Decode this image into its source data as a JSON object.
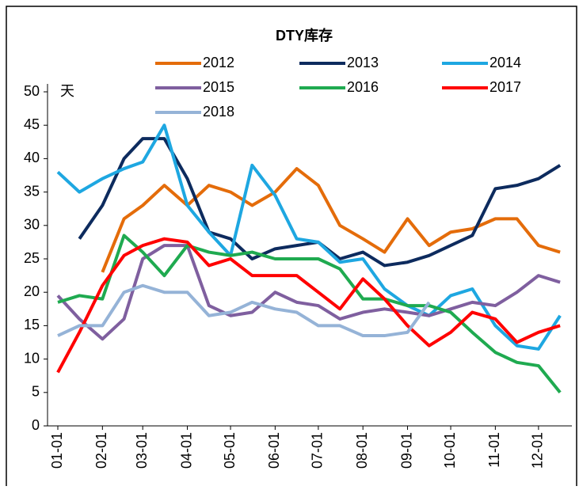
{
  "chart_data": {
    "type": "line",
    "title": "DTY库存",
    "y_label": "天",
    "x": [
      "01-01",
      "01-16",
      "02-01",
      "02-16",
      "03-01",
      "03-16",
      "04-01",
      "04-16",
      "05-01",
      "05-16",
      "06-01",
      "06-16",
      "07-01",
      "07-16",
      "08-01",
      "08-16",
      "09-01",
      "09-16",
      "10-01",
      "10-16",
      "11-01",
      "11-16",
      "12-01",
      "12-16"
    ],
    "xticks": [
      "01-01",
      "02-01",
      "03-01",
      "04-01",
      "05-01",
      "06-01",
      "07-01",
      "08-01",
      "09-01",
      "10-01",
      "11-01",
      "12-01"
    ],
    "ylim": [
      0,
      50
    ],
    "yticks": [
      0,
      5,
      10,
      15,
      20,
      25,
      30,
      35,
      40,
      45,
      50
    ],
    "grid": false,
    "series": [
      {
        "name": "2012",
        "color": "#e46c0a",
        "values": [
          null,
          null,
          23,
          31,
          33,
          36,
          33,
          36,
          35,
          33,
          35,
          38.5,
          36,
          30,
          28,
          26,
          31,
          27,
          29,
          29.5,
          31,
          31,
          27,
          26
        ]
      },
      {
        "name": "2013",
        "color": "#0d2b5e",
        "values": [
          null,
          28,
          33,
          40,
          43,
          43,
          37,
          29,
          28,
          25,
          26.5,
          27,
          27.5,
          25,
          26,
          24,
          24.5,
          25.5,
          27,
          28.5,
          35.5,
          36,
          37,
          39
        ]
      },
      {
        "name": "2014",
        "color": "#1ea7e1",
        "values": [
          38,
          35,
          37,
          38.5,
          39.5,
          45,
          33,
          29,
          25.5,
          39,
          34.5,
          28,
          27.5,
          24.5,
          25,
          20.5,
          18,
          16.5,
          19.5,
          20.5,
          15,
          12,
          11.5,
          16.5
        ]
      },
      {
        "name": "2015",
        "color": "#7f5f9f",
        "values": [
          19.5,
          16,
          13,
          16,
          25,
          27,
          27,
          18,
          16.5,
          17,
          20,
          18.5,
          18,
          16,
          17,
          17.5,
          17,
          16.5,
          17.5,
          18.5,
          18,
          20,
          22.5,
          21.5
        ]
      },
      {
        "name": "2016",
        "color": "#1faa50",
        "values": [
          18.5,
          19.5,
          19,
          28.5,
          26,
          22.5,
          27,
          26,
          25.5,
          26,
          25,
          25,
          25,
          23.5,
          19,
          19,
          18,
          18,
          17,
          14,
          11,
          9.5,
          9,
          5
        ]
      },
      {
        "name": "2017",
        "color": "#ff0000",
        "values": [
          8,
          14,
          21,
          25.5,
          27,
          28,
          27.5,
          24,
          25,
          22.5,
          22.5,
          22.5,
          20,
          17.5,
          22,
          19,
          15,
          12,
          14,
          17,
          16,
          12.5,
          14,
          15
        ]
      },
      {
        "name": "2018",
        "color": "#95b3d7",
        "values": [
          13.5,
          15,
          15,
          20,
          21,
          20,
          20,
          16.5,
          17,
          18.5,
          17.5,
          17,
          15,
          15,
          13.5,
          13.5,
          14,
          18.5,
          null,
          null,
          null,
          null,
          null,
          null
        ]
      }
    ]
  }
}
